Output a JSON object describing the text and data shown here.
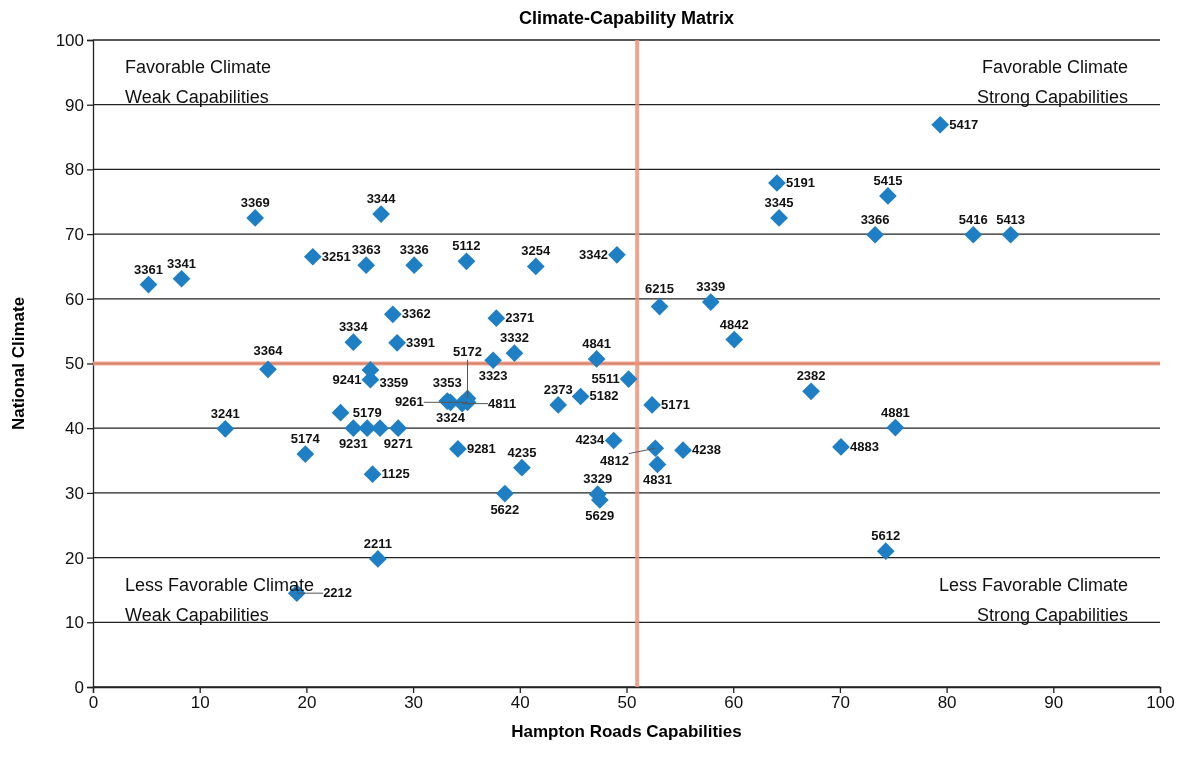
{
  "chart_data": {
    "type": "scatter",
    "title": "Climate-Capability Matrix",
    "xlabel": "Hampton Roads Capabilities",
    "ylabel": "National Climate",
    "xlim": [
      0,
      100
    ],
    "xticks": [
      0,
      10,
      20,
      30,
      40,
      50,
      60,
      70,
      80,
      90,
      100
    ],
    "ylim": [
      0,
      100
    ],
    "yticks": [
      0,
      10,
      20,
      30,
      40,
      50,
      60,
      70,
      80,
      90,
      100
    ],
    "grid": "y",
    "marker": "diamond",
    "x": [
      5.2,
      8.3,
      15.2,
      20.6,
      25.6,
      27.0,
      30.1,
      35.0,
      41.5,
      49.1,
      28.1,
      24.4,
      28.5,
      26.0,
      16.4,
      37.8,
      37.5,
      39.5,
      47.2,
      50.2,
      45.7,
      43.6,
      52.4,
      48.8,
      52.7,
      52.9,
      55.3,
      40.2,
      33.2,
      33.5,
      34.6,
      35.1,
      35.1,
      34.2,
      23.2,
      24.4,
      25.7,
      26.9,
      28.6,
      26.0,
      26.2,
      19.9,
      12.4,
      38.6,
      47.3,
      47.5,
      26.7,
      19.1,
      53.1,
      57.9,
      60.1,
      67.3,
      75.2,
      70.1,
      74.3,
      79.4,
      64.1,
      74.5,
      64.3,
      73.3,
      82.5,
      86.0
    ],
    "series": [
      {
        "color": "#1f7fc4",
        "values": [
          62.2,
          63.1,
          72.5,
          66.5,
          65.2,
          73.1,
          65.2,
          65.8,
          65.0,
          66.8,
          57.6,
          53.3,
          53.2,
          49.0,
          49.1,
          57.0,
          50.5,
          51.6,
          50.7,
          47.6,
          44.9,
          43.6,
          43.6,
          38.1,
          36.9,
          34.4,
          36.6,
          33.9,
          44.2,
          44.0,
          43.8,
          44.0,
          44.6,
          36.8,
          42.4,
          40.0,
          40.0,
          40.0,
          40.0,
          47.5,
          32.9,
          36.0,
          39.9,
          29.9,
          29.8,
          28.9,
          19.8,
          14.5,
          58.8,
          59.5,
          53.7,
          45.7,
          40.1,
          37.1,
          21.0,
          86.9,
          77.9,
          75.9,
          72.5,
          69.9,
          69.9,
          69.9
        ]
      }
    ],
    "ref_lines": [
      {
        "axis": "x",
        "value": 51,
        "color": "#f0937a"
      },
      {
        "axis": "y",
        "value": 50,
        "color": "#f0937a"
      }
    ],
    "annotations": [
      "Favorable Climate\nWeak Capabilities",
      "Favorable Climate\nStrong Capabilities",
      "Less Favorable Climate\nWeak Capabilities",
      "Less Favorable Climate\nStrong Capabilities",
      {
        "text": "3361",
        "x": 5.2,
        "y": 62.2
      },
      {
        "text": "3341",
        "x": 8.3,
        "y": 63.1
      },
      {
        "text": "3369",
        "x": 15.2,
        "y": 72.5
      },
      {
        "text": "3251",
        "x": 20.6,
        "y": 66.5
      },
      {
        "text": "3363",
        "x": 25.6,
        "y": 65.2
      },
      {
        "text": "3344",
        "x": 27.0,
        "y": 73.1
      },
      {
        "text": "3336",
        "x": 30.1,
        "y": 65.2
      },
      {
        "text": "5112",
        "x": 35.0,
        "y": 65.8
      },
      {
        "text": "3254",
        "x": 41.5,
        "y": 65.0
      },
      {
        "text": "3342",
        "x": 49.1,
        "y": 66.8
      },
      {
        "text": "3362",
        "x": 28.1,
        "y": 57.6
      },
      {
        "text": "3334",
        "x": 24.4,
        "y": 53.3
      },
      {
        "text": "3391",
        "x": 28.5,
        "y": 53.2
      },
      {
        "text": "3359",
        "x": 26.0,
        "y": 49.0
      },
      {
        "text": "3364",
        "x": 16.4,
        "y": 49.1
      },
      {
        "text": "2371",
        "x": 37.8,
        "y": 57.0
      },
      {
        "text": "3323",
        "x": 37.5,
        "y": 50.5
      },
      {
        "text": "3332",
        "x": 39.5,
        "y": 51.6
      },
      {
        "text": "4841",
        "x": 47.2,
        "y": 50.7
      },
      {
        "text": "5511",
        "x": 50.2,
        "y": 47.6
      },
      {
        "text": "5182",
        "x": 45.7,
        "y": 44.9
      },
      {
        "text": "2373",
        "x": 43.6,
        "y": 43.6
      },
      {
        "text": "5171",
        "x": 52.4,
        "y": 43.6
      },
      {
        "text": "4234",
        "x": 48.8,
        "y": 38.1
      },
      {
        "text": "4812",
        "x": 52.7,
        "y": 36.9
      },
      {
        "text": "4831",
        "x": 52.9,
        "y": 34.4
      },
      {
        "text": "4238",
        "x": 55.3,
        "y": 36.6
      },
      {
        "text": "4235",
        "x": 40.2,
        "y": 33.9
      },
      {
        "text": "3353",
        "x": 33.2,
        "y": 44.2
      },
      {
        "text": "3324",
        "x": 33.5,
        "y": 44.0
      },
      {
        "text": "4811",
        "x": 34.6,
        "y": 43.8
      },
      {
        "text": "9261",
        "x": 35.1,
        "y": 44.0
      },
      {
        "text": "5172",
        "x": 35.1,
        "y": 44.6
      },
      {
        "text": "9281",
        "x": 34.2,
        "y": 36.8
      },
      {
        "text": "9231",
        "x": 24.4,
        "y": 40.0
      },
      {
        "text": "5179",
        "x": 25.7,
        "y": 40.0
      },
      {
        "text": "9271",
        "x": 28.6,
        "y": 40.0
      },
      {
        "text": "9241",
        "x": 26.0,
        "y": 47.5
      },
      {
        "text": "1125",
        "x": 26.2,
        "y": 32.9
      },
      {
        "text": "5174",
        "x": 19.9,
        "y": 36.0
      },
      {
        "text": "3241",
        "x": 12.4,
        "y": 39.9
      },
      {
        "text": "5622",
        "x": 38.6,
        "y": 29.9
      },
      {
        "text": "3329",
        "x": 47.3,
        "y": 29.8
      },
      {
        "text": "5629",
        "x": 47.5,
        "y": 28.9
      },
      {
        "text": "2211",
        "x": 26.7,
        "y": 19.8
      },
      {
        "text": "2212",
        "x": 19.1,
        "y": 14.5
      },
      {
        "text": "6215",
        "x": 53.1,
        "y": 58.8
      },
      {
        "text": "3339",
        "x": 57.9,
        "y": 59.5
      },
      {
        "text": "4842",
        "x": 60.1,
        "y": 53.7
      },
      {
        "text": "2382",
        "x": 67.3,
        "y": 45.7
      },
      {
        "text": "4881",
        "x": 75.2,
        "y": 40.1
      },
      {
        "text": "4883",
        "x": 70.1,
        "y": 37.1
      },
      {
        "text": "5612",
        "x": 74.3,
        "y": 21.0
      },
      {
        "text": "5417",
        "x": 79.4,
        "y": 86.9
      },
      {
        "text": "5191",
        "x": 64.1,
        "y": 77.9
      },
      {
        "text": "5415",
        "x": 74.5,
        "y": 75.9
      },
      {
        "text": "3345",
        "x": 64.3,
        "y": 72.5
      },
      {
        "text": "3366",
        "x": 73.3,
        "y": 69.9
      },
      {
        "text": "5416",
        "x": 82.5,
        "y": 69.9
      },
      {
        "text": "5413",
        "x": 86.0,
        "y": 69.9
      }
    ]
  }
}
